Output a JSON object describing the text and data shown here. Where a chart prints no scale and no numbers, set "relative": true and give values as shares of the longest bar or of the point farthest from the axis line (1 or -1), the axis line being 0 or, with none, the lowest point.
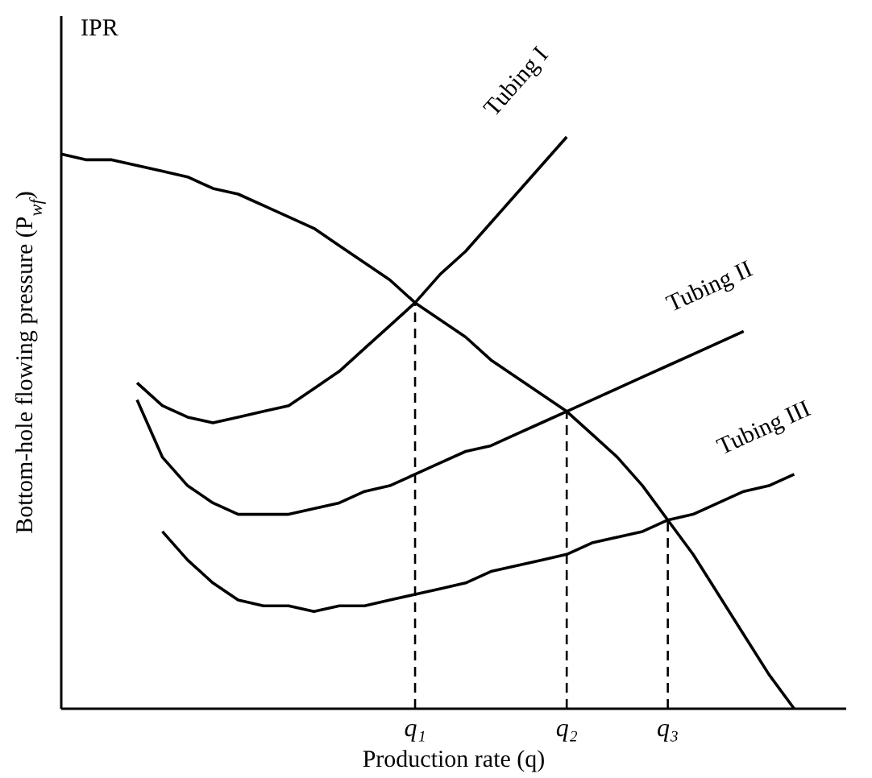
{
  "chart_data": {
    "type": "line",
    "relative": true,
    "xlabel": "Production rate (q)",
    "ylabel": "Bottom-hole flowing pressure (P$_{wf}$)",
    "tick_labels": "x",
    "marker": "none",
    "line_style": "solid",
    "categories": [
      null,
      null,
      null,
      null,
      null,
      null,
      null,
      null,
      null,
      null,
      null,
      null,
      null,
      null,
      "q₁",
      null,
      null,
      null,
      null,
      null,
      "q₂",
      null,
      null,
      null,
      "q₃",
      null,
      null,
      null,
      null,
      null
    ],
    "series": [
      {
        "name": "IPR",
        "color": "#000000",
        "values": [
          0.97,
          0.96,
          0.96,
          0.95,
          0.94,
          0.93,
          0.91,
          0.9,
          0.88,
          0.86,
          0.84,
          0.81,
          0.78,
          0.75,
          0.71,
          0.68,
          0.65,
          0.61,
          0.58,
          0.55,
          0.52,
          0.48,
          0.44,
          0.39,
          0.33,
          0.27,
          0.2,
          0.13,
          0.06,
          0
        ]
      },
      {
        "name": "Tubing I",
        "color": "#000000",
        "values": [
          null,
          null,
          null,
          0.57,
          0.53,
          0.51,
          0.5,
          0.51,
          0.52,
          0.53,
          0.56,
          0.59,
          0.63,
          0.67,
          0.71,
          0.76,
          0.8,
          0.85,
          0.9,
          0.95,
          1,
          null,
          null,
          null,
          null,
          null,
          null,
          null,
          null,
          null
        ]
      },
      {
        "name": "Tubing II",
        "color": "#000000",
        "values": [
          null,
          null,
          null,
          0.54,
          0.44,
          0.39,
          0.36,
          0.34,
          0.34,
          0.34,
          0.35,
          0.36,
          0.38,
          0.39,
          0.41,
          0.43,
          0.45,
          0.46,
          0.48,
          0.5,
          0.52,
          0.54,
          0.56,
          0.58,
          0.6,
          0.62,
          0.64,
          0.66,
          null,
          null
        ]
      },
      {
        "name": "Tubing III",
        "color": "#000000",
        "values": [
          null,
          null,
          null,
          null,
          0.31,
          0.26,
          0.22,
          0.19,
          0.18,
          0.18,
          0.17,
          0.18,
          0.18,
          0.19,
          0.2,
          0.21,
          0.22,
          0.24,
          0.25,
          0.26,
          0.27,
          0.29,
          0.3,
          0.31,
          0.33,
          0.34,
          0.36,
          0.38,
          0.39,
          0.41
        ]
      }
    ],
    "ref_lines": [
      {
        "axis": "x",
        "value": "q₁",
        "line_style": "dashed"
      },
      {
        "axis": "x",
        "value": "q₂",
        "line_style": "dashed"
      },
      {
        "axis": "x",
        "value": "q₃",
        "line_style": "dashed"
      }
    ]
  }
}
